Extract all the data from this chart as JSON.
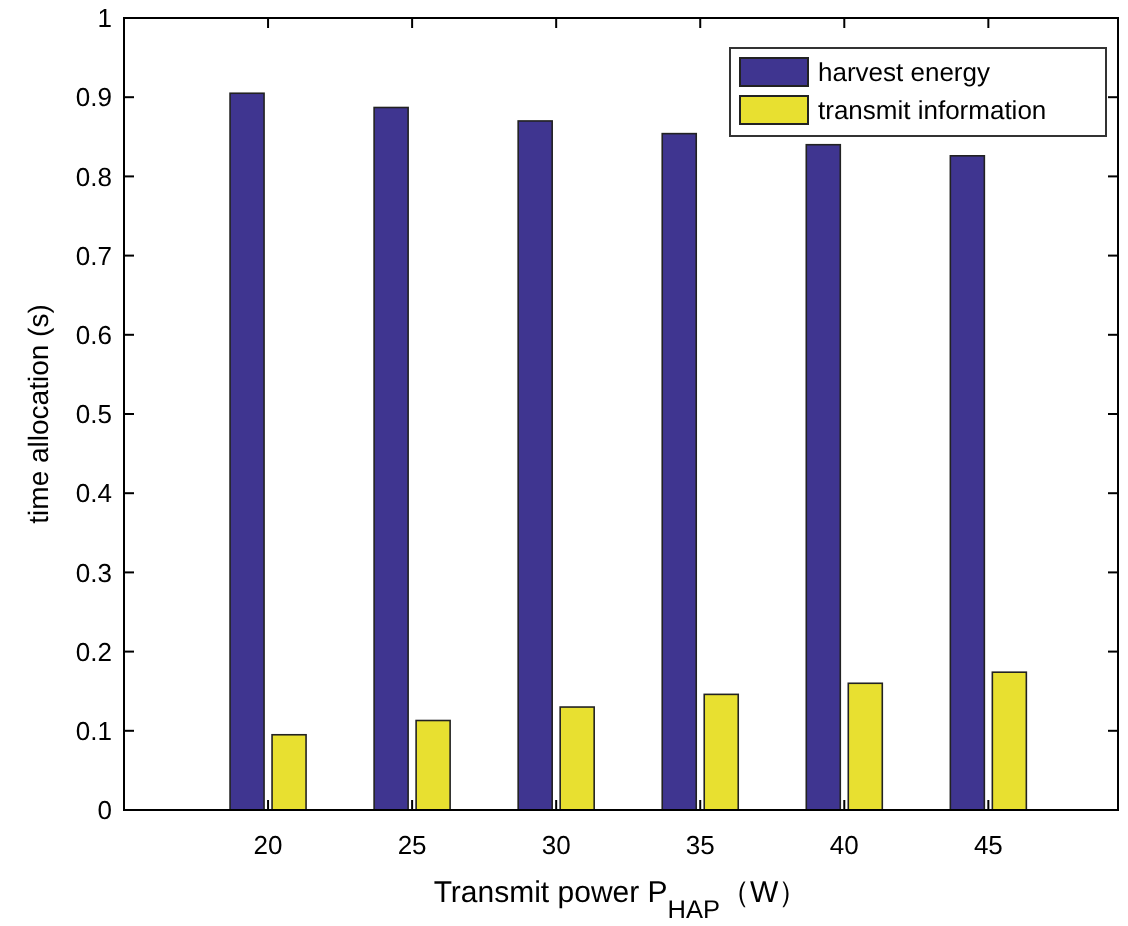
{
  "chart_data": {
    "type": "bar",
    "xlabel": "Transmit power P$_{HAP}$（W）",
    "ylabel": "time allocation (s)",
    "categories": [
      "20",
      "25",
      "30",
      "35",
      "40",
      "45"
    ],
    "series": [
      {
        "name": "harvest energy",
        "color": "#3f3590",
        "values": [
          0.905,
          0.887,
          0.87,
          0.854,
          0.84,
          0.826
        ]
      },
      {
        "name": "transmit information",
        "color": "#e8e030",
        "values": [
          0.095,
          0.113,
          0.13,
          0.146,
          0.16,
          0.174
        ]
      }
    ],
    "ylim": [
      0,
      1
    ],
    "yticks": [
      0,
      0.1,
      0.2,
      0.3,
      0.4,
      0.5,
      0.6,
      0.7,
      0.8,
      0.9,
      1
    ],
    "legend": "top right",
    "grid": false
  }
}
